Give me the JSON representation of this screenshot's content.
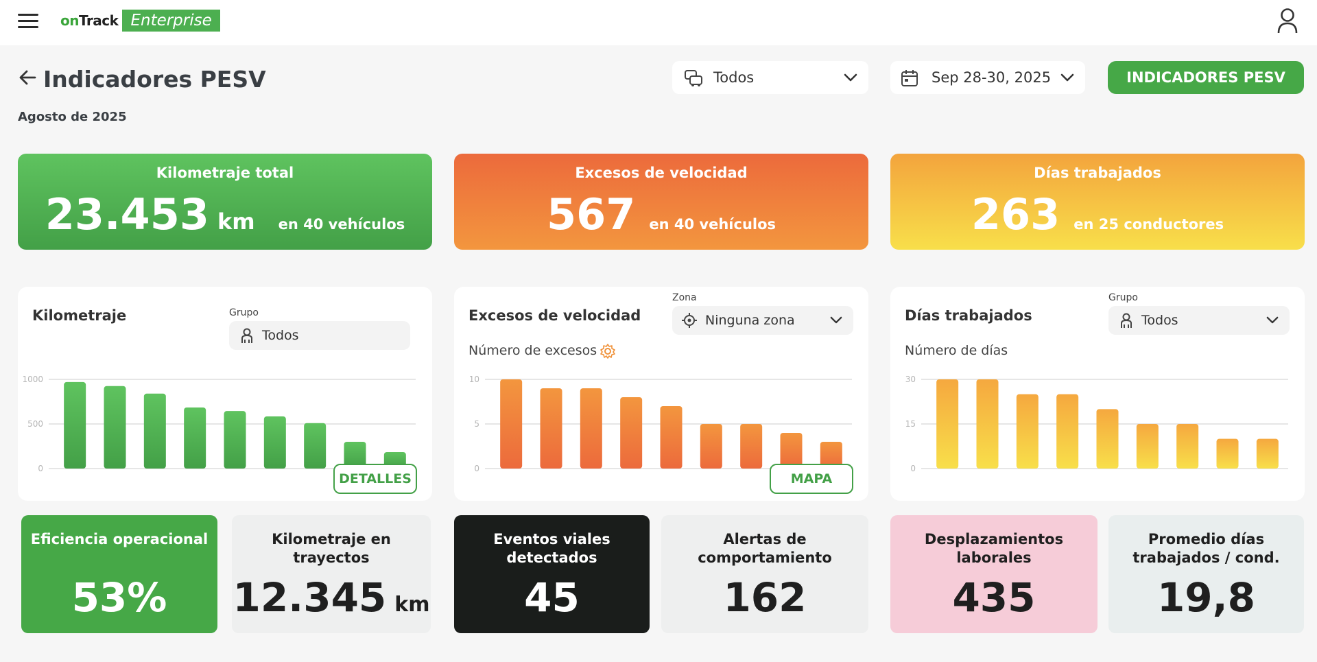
{
  "app": {
    "logo_on": "on",
    "logo_track": "Track",
    "logo_edition": "Enterprise"
  },
  "header": {
    "title": "Indicadores PESV",
    "period": "Agosto de 2025",
    "vehicle_filter": "Todos",
    "date_range": "Sep 28-30, 2025",
    "pesv_button": "INDICADORES PESV"
  },
  "kpis": {
    "mileage": {
      "title": "Kilometraje total",
      "value": "23.453",
      "unit": "km",
      "sub": "en 40 vehículos"
    },
    "speeding": {
      "title": "Excesos de velocidad",
      "value": "567",
      "sub": "en 40 vehículos"
    },
    "days": {
      "title": "Días trabajados",
      "value": "263",
      "sub": "en 25 conductores"
    }
  },
  "cards": {
    "mileage": {
      "title": "Kilometraje",
      "filter_label": "Grupo",
      "filter_value": "Todos",
      "button": "DETALLES"
    },
    "speeding": {
      "title": "Excesos de velocidad",
      "filter_label": "Zona",
      "filter_value": "Ninguna zona",
      "axis_label": "Número de excesos",
      "button": "MAPA"
    },
    "days": {
      "title": "Días trabajados",
      "filter_label": "Grupo",
      "filter_value": "Todos",
      "axis_label": "Número de días"
    }
  },
  "stats": {
    "efficiency": {
      "title": "Eficiencia operacional",
      "value": "53%"
    },
    "trip_mileage": {
      "title": "Kilometraje en trayectos",
      "value": "12.345",
      "unit": "km"
    },
    "road_events": {
      "title": "Eventos viales detectados",
      "value": "45"
    },
    "behavior_alerts": {
      "title": "Alertas de comportamiento",
      "value": "162"
    },
    "work_trips": {
      "title": "Desplazamientos laborales",
      "value": "435"
    },
    "avg_days": {
      "title": "Promedio días trabajados / cond.",
      "value": "19,8"
    }
  },
  "colors": {
    "green": "#43a047",
    "orange": "#ec6a3c",
    "yellow": "#f8df4a",
    "dark": "#1a1d1b",
    "pink": "#f6ccd8",
    "gray": "#eeefef"
  },
  "chart_data": [
    {
      "type": "bar",
      "title": "Kilometraje",
      "ylim": [
        0,
        1000
      ],
      "yticks": [
        "0",
        "500",
        "1000"
      ],
      "values": [
        970,
        925,
        840,
        685,
        645,
        585,
        510,
        300,
        185
      ],
      "color_top": "#5fc35f",
      "color_bottom": "#43a047",
      "grid": true
    },
    {
      "type": "bar",
      "title": "Excesos de velocidad",
      "ylabel": "Número de excesos",
      "ylim": [
        0,
        10
      ],
      "yticks": [
        "0",
        "5",
        "10"
      ],
      "values": [
        10,
        9,
        9,
        8,
        7,
        5,
        5,
        4,
        3
      ],
      "color_top": "#f3963e",
      "color_bottom": "#ec6a3c",
      "grid": true
    },
    {
      "type": "bar",
      "title": "Días trabajados",
      "ylabel": "Número de días",
      "ylim": [
        0,
        30
      ],
      "yticks": [
        "0",
        "15",
        "30"
      ],
      "values": [
        30,
        30,
        25,
        25,
        20,
        15,
        15,
        10,
        10
      ],
      "color_top": "#f5a83f",
      "color_bottom": "#f8df4a",
      "grid": true
    }
  ]
}
